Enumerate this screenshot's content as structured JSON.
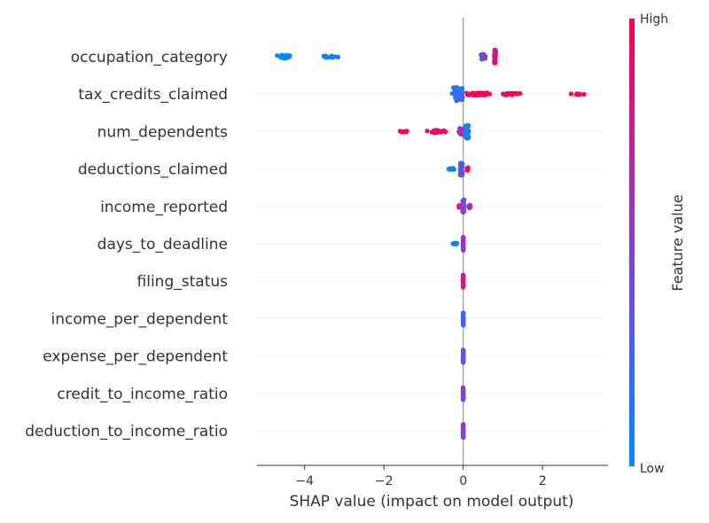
{
  "chart_data": {
    "type": "scatter",
    "subtype": "shap-beeswarm",
    "xlabel": "SHAP value (impact on model output)",
    "xlim": [
      -5.2,
      3.65
    ],
    "xticks": [
      {
        "value": -4,
        "label": "−4"
      },
      {
        "value": -2,
        "label": "−2"
      },
      {
        "value": 0,
        "label": "0"
      },
      {
        "value": 2,
        "label": "2"
      }
    ],
    "colorbar": {
      "title": "Feature value",
      "high_label": "High",
      "low_label": "Low",
      "low_color": "#008bfb",
      "mid_color": "#8a3ecf",
      "high_color": "#ff0052"
    },
    "features": [
      {
        "name": "occupation_category",
        "min": -4.7,
        "max": 0.85,
        "clusters": [
          {
            "center": -4.5,
            "spread": 0.25,
            "count": 40,
            "height": 0.1,
            "color": 0.0
          },
          {
            "center": -3.4,
            "spread": 0.5,
            "count": 20,
            "height": 0.05,
            "color": 0.05
          },
          {
            "center": 0.5,
            "spread": 0.08,
            "count": 18,
            "height": 0.16,
            "color": 0.5
          },
          {
            "center": 0.8,
            "spread": 0.03,
            "count": 45,
            "height": 0.42,
            "color": 0.8
          }
        ]
      },
      {
        "name": "tax_credits_claimed",
        "min": -0.45,
        "max": 3.2,
        "clusters": [
          {
            "center": -0.15,
            "spread": 0.18,
            "count": 70,
            "height": 0.42,
            "color": 0.2
          },
          {
            "center": 0.4,
            "spread": 0.35,
            "count": 60,
            "height": 0.08,
            "color": 1.0
          },
          {
            "center": 1.2,
            "spread": 0.35,
            "count": 20,
            "height": 0.06,
            "color": 1.0
          },
          {
            "center": 2.8,
            "spread": 0.4,
            "count": 8,
            "height": 0.03,
            "color": 1.0
          }
        ]
      },
      {
        "name": "num_dependents",
        "min": -1.7,
        "max": 0.4,
        "clusters": [
          {
            "center": -1.5,
            "spread": 0.15,
            "count": 10,
            "height": 0.03,
            "color": 1.0
          },
          {
            "center": -0.65,
            "spread": 0.3,
            "count": 40,
            "height": 0.08,
            "color": 1.0
          },
          {
            "center": -0.05,
            "spread": 0.1,
            "count": 35,
            "height": 0.2,
            "color": 0.6
          },
          {
            "center": 0.1,
            "spread": 0.08,
            "count": 40,
            "height": 0.42,
            "color": 0.1
          }
        ]
      },
      {
        "name": "deductions_claimed",
        "min": -0.45,
        "max": 0.2,
        "clusters": [
          {
            "center": -0.3,
            "spread": 0.1,
            "count": 15,
            "height": 0.06,
            "color": 0.0
          },
          {
            "center": -0.05,
            "spread": 0.05,
            "count": 50,
            "height": 0.42,
            "color": 0.35
          },
          {
            "center": 0.1,
            "spread": 0.05,
            "count": 15,
            "height": 0.1,
            "color": 0.95
          }
        ]
      },
      {
        "name": "income_reported",
        "min": -0.15,
        "max": 0.25,
        "clusters": [
          {
            "center": -0.1,
            "spread": 0.05,
            "count": 12,
            "height": 0.07,
            "color": 0.9
          },
          {
            "center": 0.0,
            "spread": 0.03,
            "count": 50,
            "height": 0.42,
            "color": 0.4
          },
          {
            "center": 0.15,
            "spread": 0.06,
            "count": 12,
            "height": 0.1,
            "color": 0.55
          }
        ]
      },
      {
        "name": "days_to_deadline",
        "min": -0.3,
        "max": 0.05,
        "clusters": [
          {
            "center": -0.2,
            "spread": 0.08,
            "count": 12,
            "height": 0.05,
            "color": 0.05
          },
          {
            "center": 0.0,
            "spread": 0.01,
            "count": 40,
            "height": 0.42,
            "color": 0.6
          }
        ]
      },
      {
        "name": "filing_status",
        "min": -0.02,
        "max": 0.02,
        "clusters": [
          {
            "center": 0.0,
            "spread": 0.01,
            "count": 40,
            "height": 0.42,
            "color": 0.7
          }
        ]
      },
      {
        "name": "income_per_dependent",
        "min": -0.02,
        "max": 0.02,
        "clusters": [
          {
            "center": 0.0,
            "spread": 0.01,
            "count": 40,
            "height": 0.42,
            "color": 0.25
          }
        ]
      },
      {
        "name": "expense_per_dependent",
        "min": -0.02,
        "max": 0.02,
        "clusters": [
          {
            "center": 0.0,
            "spread": 0.01,
            "count": 40,
            "height": 0.42,
            "color": 0.35
          }
        ]
      },
      {
        "name": "credit_to_income_ratio",
        "min": -0.02,
        "max": 0.02,
        "clusters": [
          {
            "center": 0.0,
            "spread": 0.01,
            "count": 40,
            "height": 0.42,
            "color": 0.45
          }
        ]
      },
      {
        "name": "deduction_to_income_ratio",
        "min": -0.02,
        "max": 0.02,
        "clusters": [
          {
            "center": 0.0,
            "spread": 0.01,
            "count": 40,
            "height": 0.42,
            "color": 0.5
          }
        ]
      }
    ]
  }
}
